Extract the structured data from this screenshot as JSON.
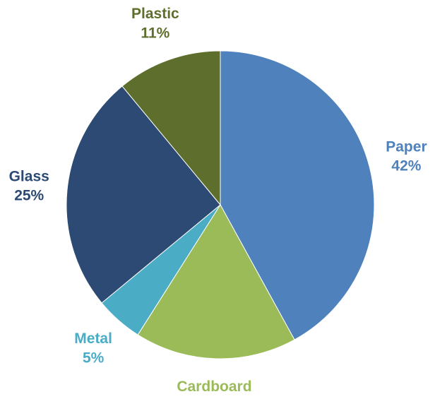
{
  "chart_data": {
    "type": "pie",
    "title": "",
    "slices": [
      {
        "label": "Paper",
        "value": 42,
        "value_text": "42%",
        "color": "#4F81BD"
      },
      {
        "label": "Cardboard",
        "value": 17,
        "value_text": "17%",
        "color": "#9BBB59"
      },
      {
        "label": "Metal",
        "value": 5,
        "value_text": "5%",
        "color": "#4BACC6"
      },
      {
        "label": "Glass",
        "value": 25,
        "value_text": "25%",
        "color": "#2C4A73"
      },
      {
        "label": "Plastic",
        "value": 11,
        "value_text": "11%",
        "color": "#5E6E2C"
      }
    ],
    "start_angle": "12 o'clock",
    "direction": "clockwise",
    "legend": "none",
    "data_labels": "outside"
  }
}
